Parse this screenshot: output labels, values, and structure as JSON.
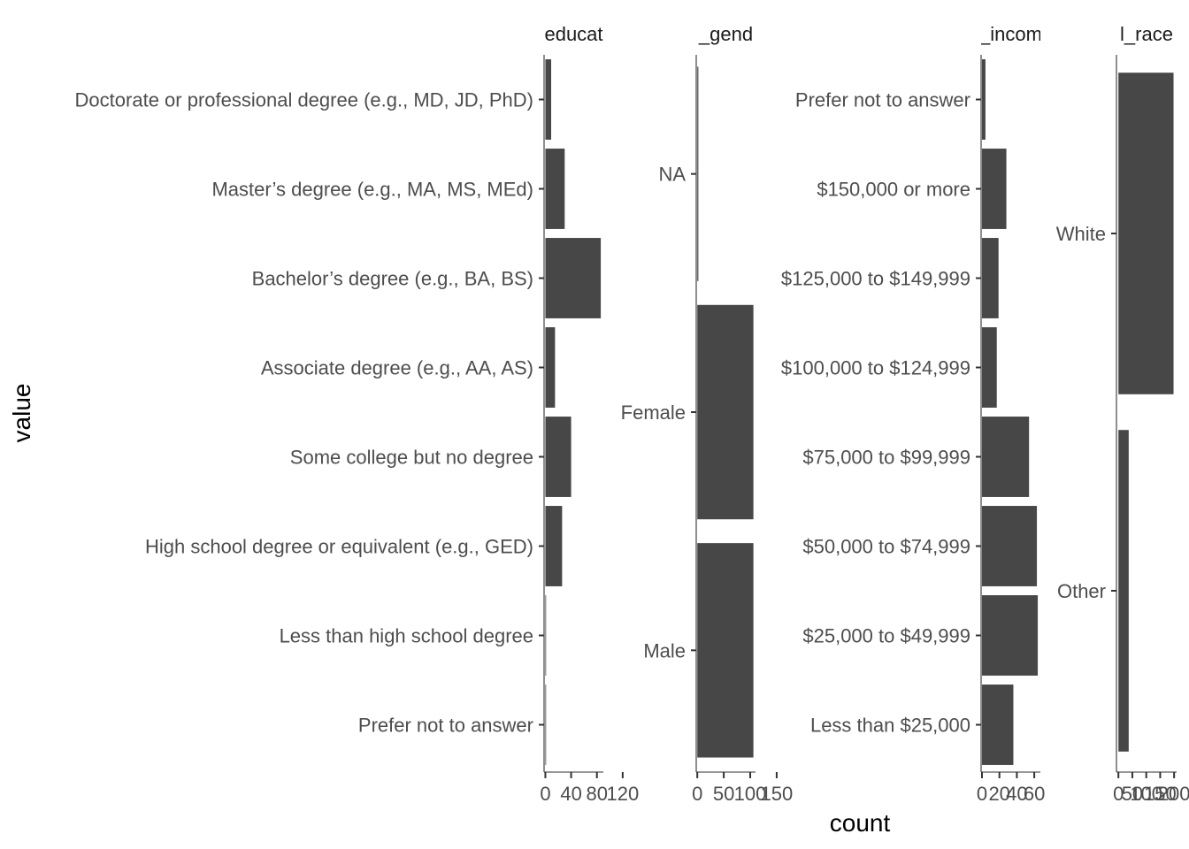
{
  "chart_data": {
    "type": "bar",
    "orientation": "horizontal",
    "facet_scales": "free",
    "xlabel": "count",
    "ylabel": "value",
    "grid": false,
    "bar_color": "#474747",
    "panels": [
      {
        "strip": "educat",
        "categories": [
          "Prefer not to answer",
          "Less than high school degree",
          "High school degree or equivalent (e.g., GED)",
          "Some college but no degree",
          "Associate degree (e.g., AA, AS)",
          "Bachelor’s degree (e.g., BA, BS)",
          "Master’s degree (e.g., MA, MS, MEd)",
          "Doctorate or professional degree (e.g., MD, JD, PhD)"
        ],
        "values": [
          1,
          1,
          26,
          40,
          15,
          86,
          30,
          9
        ],
        "xlim": [
          -2,
          90
        ],
        "xticks": [
          0,
          40,
          80,
          120
        ],
        "xtick_labels": [
          "0",
          "40",
          "80",
          "120"
        ]
      },
      {
        "strip": "_gend",
        "categories": [
          "Male",
          "Female",
          "NA"
        ],
        "values": [
          106,
          106,
          2
        ],
        "xlim": [
          -2,
          110
        ],
        "xticks": [
          0,
          50,
          100,
          150
        ],
        "xtick_labels": [
          "0",
          "50",
          "100",
          "150"
        ]
      },
      {
        "strip": "_incom",
        "categories": [
          "Less than $25,000",
          "$25,000 to $49,999",
          "$50,000 to $74,999",
          "$75,000 to $99,999",
          "$100,000 to $124,999",
          "$125,000 to $149,999",
          "$150,000 or more",
          "Prefer not to answer"
        ],
        "values": [
          36,
          64,
          63,
          54,
          17,
          19,
          28,
          4
        ],
        "xlim": [
          -1,
          67
        ],
        "xticks": [
          0,
          20,
          40,
          60
        ],
        "xtick_labels": [
          "0",
          "20",
          "40",
          "60"
        ]
      },
      {
        "strip": "l_race",
        "categories": [
          "Other",
          "White"
        ],
        "values": [
          37,
          198
        ],
        "xlim": [
          -7,
          209
        ],
        "xticks": [
          0,
          50,
          100,
          150,
          200
        ],
        "xtick_labels": [
          "0",
          "50",
          "100",
          "150",
          "200"
        ]
      }
    ]
  }
}
